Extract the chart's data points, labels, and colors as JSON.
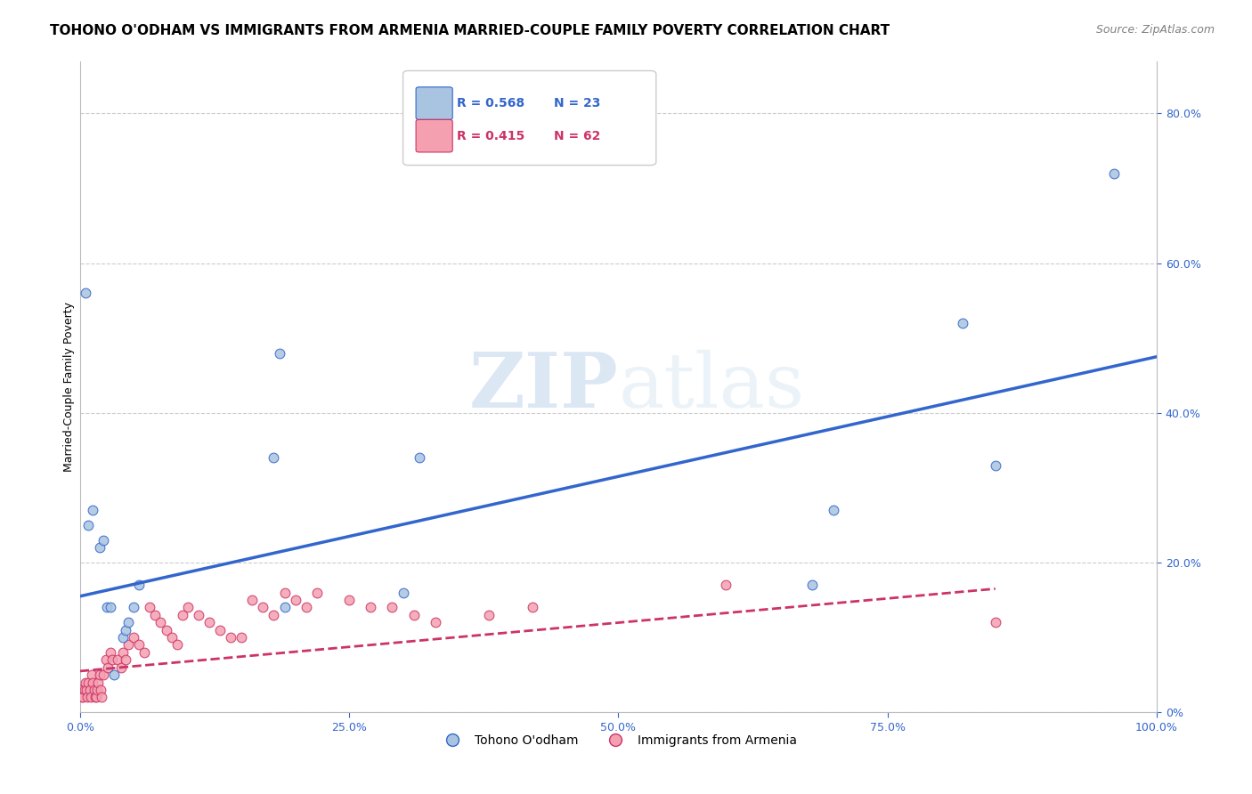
{
  "title": "TOHONO O'ODHAM VS IMMIGRANTS FROM ARMENIA MARRIED-COUPLE FAMILY POVERTY CORRELATION CHART",
  "source": "Source: ZipAtlas.com",
  "ylabel": "Married-Couple Family Poverty",
  "right_yticks": [
    "0%",
    "20.0%",
    "40.0%",
    "60.0%",
    "80.0%"
  ],
  "right_ytick_vals": [
    0,
    0.2,
    0.4,
    0.6,
    0.8
  ],
  "watermark_zip": "ZIP",
  "watermark_atlas": "atlas",
  "legend_blue_r": "R = 0.568",
  "legend_blue_n": "N = 23",
  "legend_pink_r": "R = 0.415",
  "legend_pink_n": "N = 62",
  "legend_blue_label": "Tohono O'odham",
  "legend_pink_label": "Immigrants from Armenia",
  "blue_color": "#a8c4e0",
  "blue_line_color": "#3366cc",
  "pink_color": "#f4a0b0",
  "pink_line_color": "#cc3366",
  "blue_scatter_x": [
    0.005,
    0.008,
    0.012,
    0.018,
    0.022,
    0.025,
    0.028,
    0.032,
    0.04,
    0.042,
    0.045,
    0.05,
    0.055,
    0.18,
    0.185,
    0.19,
    0.3,
    0.315,
    0.68,
    0.7,
    0.82,
    0.85,
    0.96
  ],
  "blue_scatter_y": [
    0.56,
    0.25,
    0.27,
    0.22,
    0.23,
    0.14,
    0.14,
    0.05,
    0.1,
    0.11,
    0.12,
    0.14,
    0.17,
    0.34,
    0.48,
    0.14,
    0.16,
    0.34,
    0.17,
    0.27,
    0.52,
    0.33,
    0.72
  ],
  "pink_scatter_x": [
    0.001,
    0.002,
    0.003,
    0.004,
    0.005,
    0.006,
    0.007,
    0.008,
    0.009,
    0.01,
    0.011,
    0.012,
    0.013,
    0.014,
    0.015,
    0.016,
    0.017,
    0.018,
    0.019,
    0.02,
    0.022,
    0.024,
    0.026,
    0.028,
    0.03,
    0.035,
    0.038,
    0.04,
    0.042,
    0.045,
    0.05,
    0.055,
    0.06,
    0.065,
    0.07,
    0.075,
    0.08,
    0.085,
    0.09,
    0.095,
    0.1,
    0.11,
    0.12,
    0.13,
    0.14,
    0.15,
    0.16,
    0.17,
    0.18,
    0.19,
    0.2,
    0.21,
    0.22,
    0.25,
    0.27,
    0.29,
    0.31,
    0.33,
    0.38,
    0.42,
    0.6,
    0.85
  ],
  "pink_scatter_y": [
    0.03,
    0.02,
    0.02,
    0.03,
    0.04,
    0.03,
    0.02,
    0.04,
    0.03,
    0.02,
    0.05,
    0.04,
    0.03,
    0.02,
    0.02,
    0.03,
    0.04,
    0.05,
    0.03,
    0.02,
    0.05,
    0.07,
    0.06,
    0.08,
    0.07,
    0.07,
    0.06,
    0.08,
    0.07,
    0.09,
    0.1,
    0.09,
    0.08,
    0.14,
    0.13,
    0.12,
    0.11,
    0.1,
    0.09,
    0.13,
    0.14,
    0.13,
    0.12,
    0.11,
    0.1,
    0.1,
    0.15,
    0.14,
    0.13,
    0.16,
    0.15,
    0.14,
    0.16,
    0.15,
    0.14,
    0.14,
    0.13,
    0.12,
    0.13,
    0.14,
    0.17,
    0.12
  ],
  "blue_line_x": [
    0.0,
    1.0
  ],
  "blue_line_y": [
    0.155,
    0.475
  ],
  "pink_line_x": [
    0.0,
    0.85
  ],
  "pink_line_y": [
    0.055,
    0.165
  ],
  "xlim": [
    0.0,
    1.0
  ],
  "ylim": [
    0.0,
    0.87
  ],
  "background_color": "#ffffff",
  "grid_color": "#cccccc",
  "title_fontsize": 11,
  "source_fontsize": 9,
  "axis_label_fontsize": 9,
  "scatter_size": 60
}
